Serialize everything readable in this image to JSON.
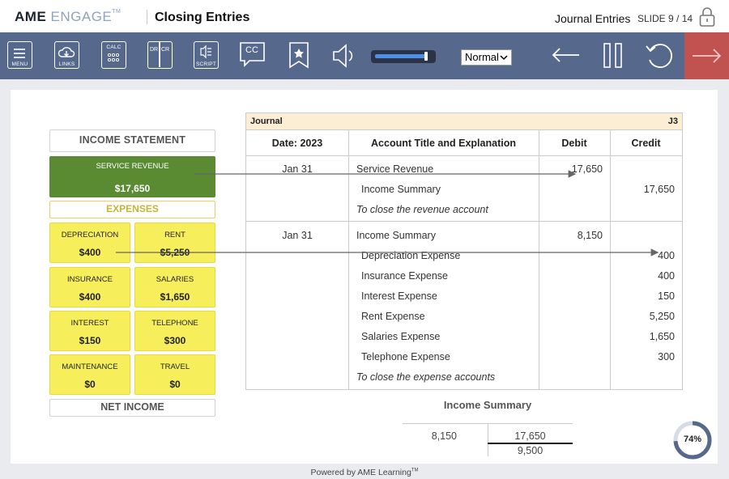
{
  "header": {
    "brand_bold": "AME",
    "brand_light": "ENGAGE",
    "brand_tm": "TM",
    "title": "Closing Entries",
    "section": "Journal Entries",
    "slide_counter": "SLIDE 9 / 14"
  },
  "toolbar": {
    "menu_label": "MENU",
    "links_label": "LINKS",
    "calc_label": "CALC",
    "drcr_left": "DR",
    "drcr_right": "CR",
    "script_label": "SCRIPT",
    "cc_label": "CC",
    "speed_value": "Normal",
    "volume_level": 0.9
  },
  "income_statement": {
    "header": "INCOME STATEMENT",
    "revenue": {
      "label": "SERVICE REVENUE",
      "value": "$17,650"
    },
    "expenses_header": "EXPENSES",
    "expenses": [
      {
        "label": "DEPRECIATION",
        "value": "$400"
      },
      {
        "label": "RENT",
        "value": "$5,250"
      },
      {
        "label": "INSURANCE",
        "value": "$400"
      },
      {
        "label": "SALARIES",
        "value": "$1,650"
      },
      {
        "label": "INTEREST",
        "value": "$150"
      },
      {
        "label": "TELEPHONE",
        "value": "$300"
      },
      {
        "label": "MAINTENANCE",
        "value": "$0"
      },
      {
        "label": "TRAVEL",
        "value": "$0"
      }
    ],
    "net_income": "NET INCOME"
  },
  "journal": {
    "title": "Journal",
    "page": "J3",
    "columns": [
      "Date: 2023",
      "Account Title and Explanation",
      "Debit",
      "Credit"
    ],
    "entry1": {
      "date": "Jan 31",
      "lines": [
        {
          "account": "Service Revenue",
          "debit": "17,650",
          "credit": ""
        },
        {
          "account": "Income Summary",
          "debit": "",
          "credit": "17,650"
        }
      ],
      "explanation": "To close the revenue account"
    },
    "entry2": {
      "date": "Jan 31",
      "lines": [
        {
          "account": "Income Summary",
          "debit": "8,150",
          "credit": ""
        },
        {
          "account": "Depreciation Expense",
          "debit": "",
          "credit": "400"
        },
        {
          "account": "Insurance Expense",
          "debit": "",
          "credit": "400"
        },
        {
          "account": "Interest Expense",
          "debit": "",
          "credit": "150"
        },
        {
          "account": "Rent Expense",
          "debit": "",
          "credit": "5,250"
        },
        {
          "account": "Salaries Expense",
          "debit": "",
          "credit": "1,650"
        },
        {
          "account": "Telephone Expense",
          "debit": "",
          "credit": "300"
        }
      ],
      "explanation": "To close the expense accounts"
    }
  },
  "t_account": {
    "title": "Income Summary",
    "debit": "8,150",
    "credit": "17,650",
    "balance": "9,500"
  },
  "progress": {
    "percent": "74%",
    "fraction": 0.74
  },
  "footer": {
    "text": "Powered by AME Learning",
    "tm": "TM"
  },
  "colors": {
    "toolbar": "#56688b",
    "next": "#c0524f",
    "revenue": "#5a8b32",
    "expense": "#f6ee5b",
    "journal_header": "#fbeed5"
  }
}
